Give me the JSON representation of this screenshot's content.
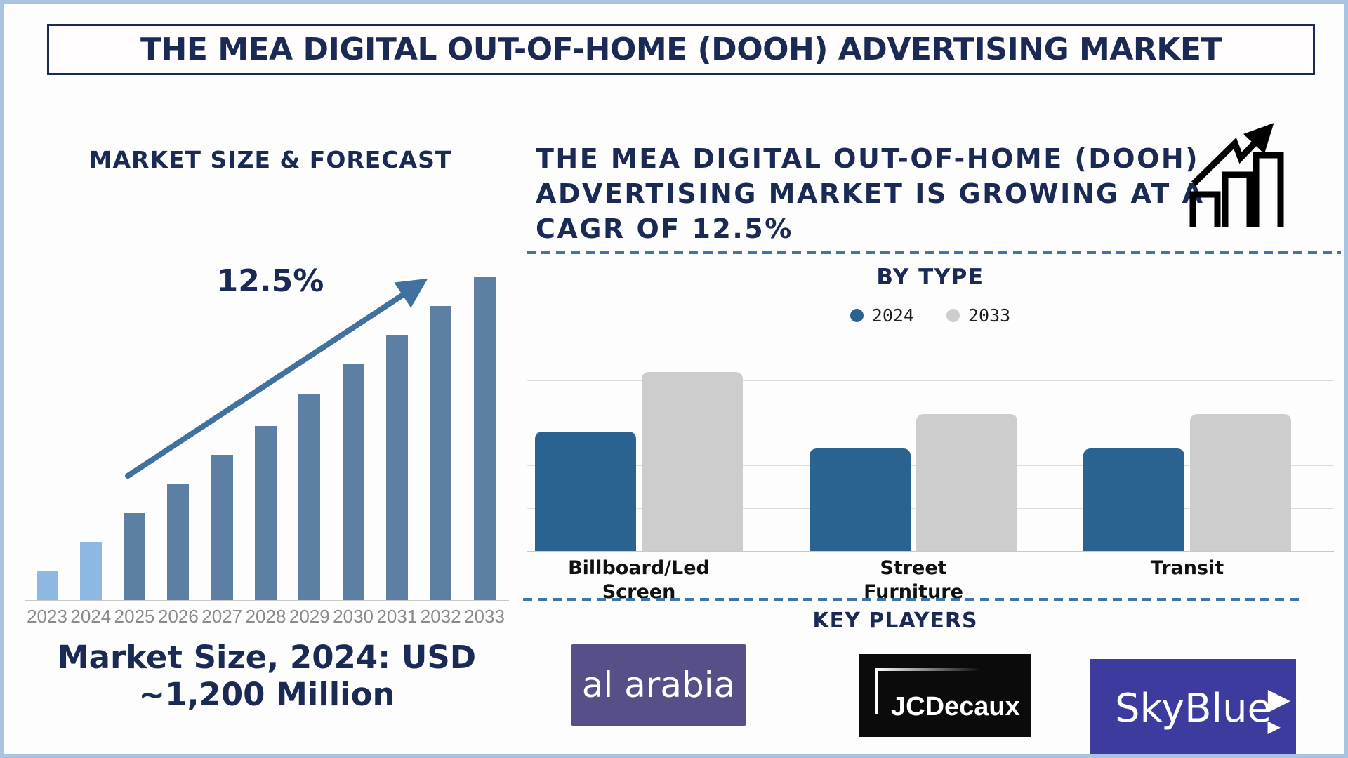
{
  "page": {
    "title": "THE MEA DIGITAL OUT-OF-HOME (DOOH) ADVERTISING MARKET"
  },
  "colors": {
    "navy_text": "#1b2a55",
    "frame_border": "#a9c4e0",
    "divider_dash": "#3e74a6",
    "arrow_steel": "#41719f",
    "axis_label_gray": "#8a8a8a",
    "left_bar_light": "#8cb8e3",
    "left_bar_dark": "#5d7fa4",
    "right_bar_blue": "#2a6290",
    "right_bar_gray": "#cdcdcd"
  },
  "left_section": {
    "chart_title": "MARKET SIZE & FORECAST",
    "cagr_label": "12.5%",
    "market_size_note": "Market Size, 2024: USD ~1,200 Million"
  },
  "right_section": {
    "headline": "THE MEA DIGITAL OUT-OF-HOME (DOOH) ADVERTISING MARKET IS GROWING AT A CAGR OF 12.5%",
    "growth_icon": "growth-chart-icon",
    "by_type_title": "BY TYPE",
    "key_players_title": "KEY PLAYERS",
    "key_players": [
      {
        "name": "al arabia",
        "bg": "#575088"
      },
      {
        "name": "JCDecaux",
        "bg": "#0b0b0b"
      },
      {
        "name": "SkyBlue",
        "bg": "#3d3c9e"
      }
    ]
  },
  "chart_data": [
    {
      "type": "bar",
      "title": "MARKET SIZE & FORECAST",
      "categories": [
        "2023",
        "2024",
        "2025",
        "2026",
        "2027",
        "2028",
        "2029",
        "2030",
        "2031",
        "2032",
        "2033"
      ],
      "values": [
        9,
        18,
        27,
        36,
        45,
        54,
        64,
        73,
        82,
        91,
        100
      ],
      "value_unit": "relative height, 2033 = 100 (no y-axis shown)",
      "anchor_value": "2024 = USD ~1,200 Million",
      "annotation": "12.5%",
      "bar_colors": [
        "#8cb8e3",
        "#8cb8e3",
        "#5d7fa4",
        "#5d7fa4",
        "#5d7fa4",
        "#5d7fa4",
        "#5d7fa4",
        "#5d7fa4",
        "#5d7fa4",
        "#5d7fa4",
        "#5d7fa4"
      ],
      "xlabel": "",
      "ylabel": "",
      "grid": false,
      "legend": false
    },
    {
      "type": "bar",
      "title": "BY TYPE",
      "categories": [
        "Billboard/Led Screen",
        "Street Furniture",
        "Transit"
      ],
      "series": [
        {
          "name": "2024",
          "color": "#2a6290",
          "values": [
            56,
            48,
            48
          ]
        },
        {
          "name": "2033",
          "color": "#cdcdcd",
          "values": [
            84,
            64,
            64
          ]
        }
      ],
      "ylim": [
        0,
        100
      ],
      "grid": true,
      "legend_position": "top"
    }
  ]
}
